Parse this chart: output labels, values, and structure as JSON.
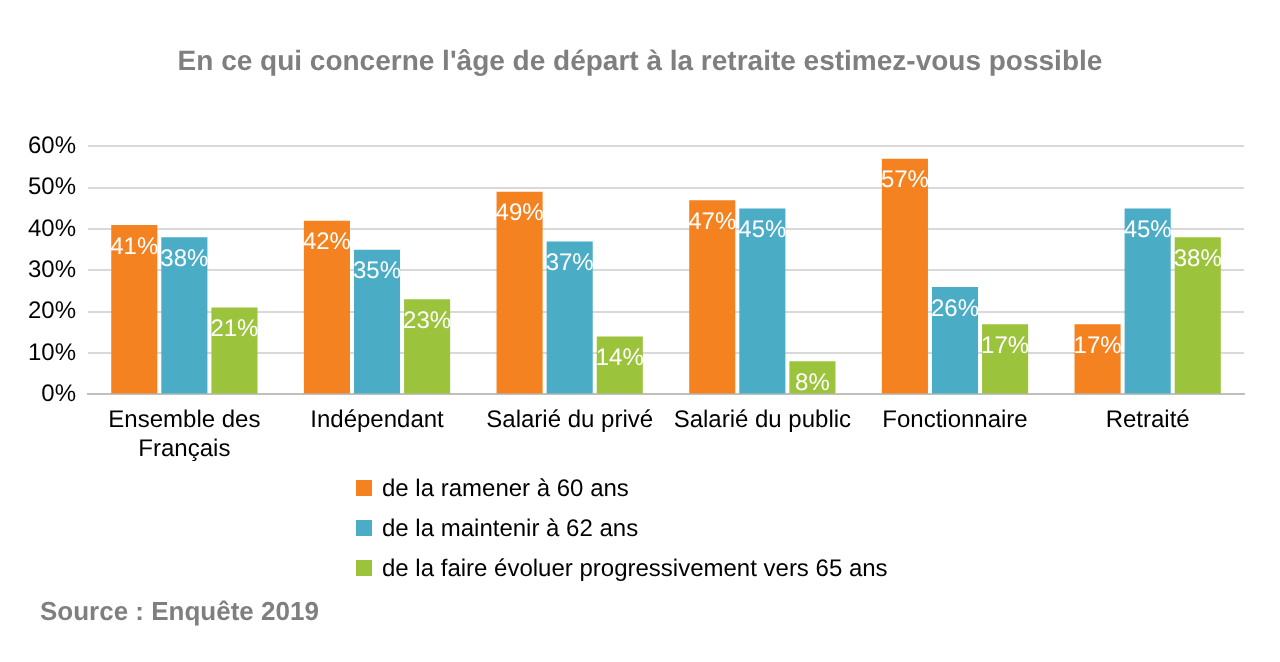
{
  "chart_data": {
    "type": "bar",
    "title": "En ce qui concerne l'âge de départ à la retraite estimez-vous possible",
    "categories": [
      "Ensemble des Français",
      "Indépendant",
      "Salarié du privé",
      "Salarié du public",
      "Fonctionnaire",
      "Retraité"
    ],
    "series": [
      {
        "name": "de la ramener à 60 ans",
        "color": "#f58220",
        "values": [
          41,
          42,
          49,
          47,
          57,
          17
        ],
        "value_labels": [
          "41%",
          "42%",
          "49%",
          "47%",
          "57%",
          "17%"
        ]
      },
      {
        "name": "de la maintenir à 62 ans",
        "color": "#4bacc6",
        "values": [
          38,
          35,
          37,
          45,
          26,
          45
        ],
        "value_labels": [
          "38%",
          "35%",
          "37%",
          "45%",
          "26%",
          "45%"
        ]
      },
      {
        "name": "de la faire évoluer progressivement vers 65 ans",
        "color": "#9bc33c",
        "values": [
          21,
          23,
          14,
          8,
          17,
          38
        ],
        "value_labels": [
          "21%",
          "23%",
          "14%",
          "8%",
          "17%",
          "38%"
        ]
      }
    ],
    "ylim": [
      0,
      60
    ],
    "yticks": [
      {
        "value": 0,
        "label": "0%"
      },
      {
        "value": 10,
        "label": "10%"
      },
      {
        "value": 20,
        "label": "20%"
      },
      {
        "value": 30,
        "label": "30%"
      },
      {
        "value": 40,
        "label": "40%"
      },
      {
        "value": 50,
        "label": "50%"
      },
      {
        "value": 60,
        "label": "60%"
      }
    ],
    "grid": "y",
    "legend": "bottom",
    "annotations": [
      "Source : Enquête 2019"
    ]
  }
}
